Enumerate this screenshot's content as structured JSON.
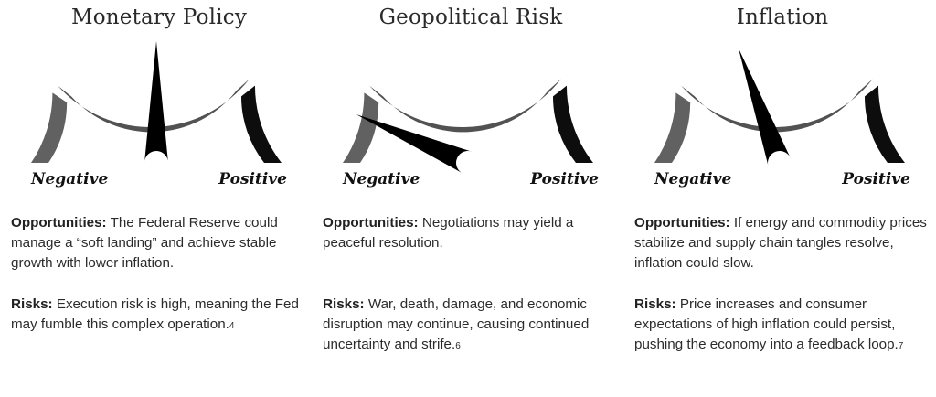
{
  "labels": {
    "negative": "Negative",
    "positive": "Positive",
    "opportunities_heading": "Opportunities:",
    "risks_heading": "Risks:"
  },
  "colors": {
    "light_segment": "#616161",
    "mid_segment": "#525252",
    "dark_segment": "#0d0d0d",
    "needle": "#000000"
  },
  "panels": [
    {
      "title": "Monetary Policy",
      "needle_level": 0.5,
      "opportunities": "The Federal Reserve could manage a “soft landing” and achieve stable growth with lower inflation.",
      "risks": "Execution risk is high, meaning the Fed may fumble this complex operation.",
      "risks_footnote": "4"
    },
    {
      "title": "Geopolitical Risk",
      "needle_level": 0.13,
      "opportunities": "Negotiations may yield a peaceful resolution.",
      "risks": "War, death, damage, and economic disruption may continue, causing continued uncertainty and strife.",
      "risks_footnote": "6"
    },
    {
      "title": "Inflation",
      "needle_level": 0.39,
      "opportunities": "If energy and commodity prices stabilize and supply chain tangles resolve, inflation could slow.",
      "risks": "Price increases and consumer expectations of high inflation could persist, pushing the economy into a feedback loop.",
      "risks_footnote": "7"
    }
  ]
}
